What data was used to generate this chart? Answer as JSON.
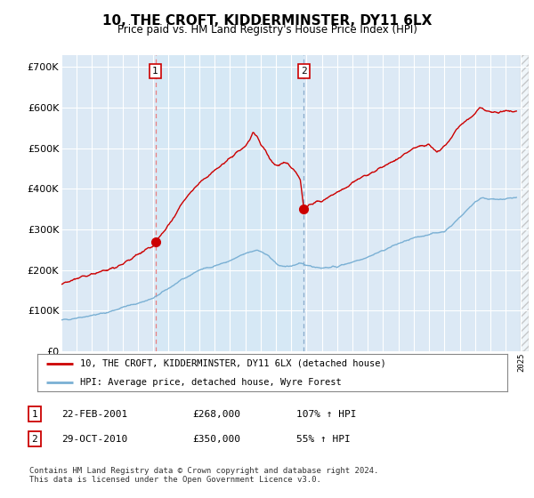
{
  "title": "10, THE CROFT, KIDDERMINSTER, DY11 6LX",
  "subtitle": "Price paid vs. HM Land Registry's House Price Index (HPI)",
  "ytick_values": [
    0,
    100000,
    200000,
    300000,
    400000,
    500000,
    600000,
    700000
  ],
  "ylim": [
    0,
    730000
  ],
  "xlim_start": 1995.0,
  "xlim_end": 2025.5,
  "legend_line1": "10, THE CROFT, KIDDERMINSTER, DY11 6LX (detached house)",
  "legend_line2": "HPI: Average price, detached house, Wyre Forest",
  "hpi_color": "#7ab0d4",
  "price_color": "#cc0000",
  "shade_color": "#d6e8f5",
  "marker1_date": 2001.13,
  "marker1_price": 268000,
  "marker2_date": 2010.83,
  "marker2_price": 350000,
  "background_color": "#dce9f5",
  "footer": "Contains HM Land Registry data © Crown copyright and database right 2024.\nThis data is licensed under the Open Government Licence v3.0."
}
